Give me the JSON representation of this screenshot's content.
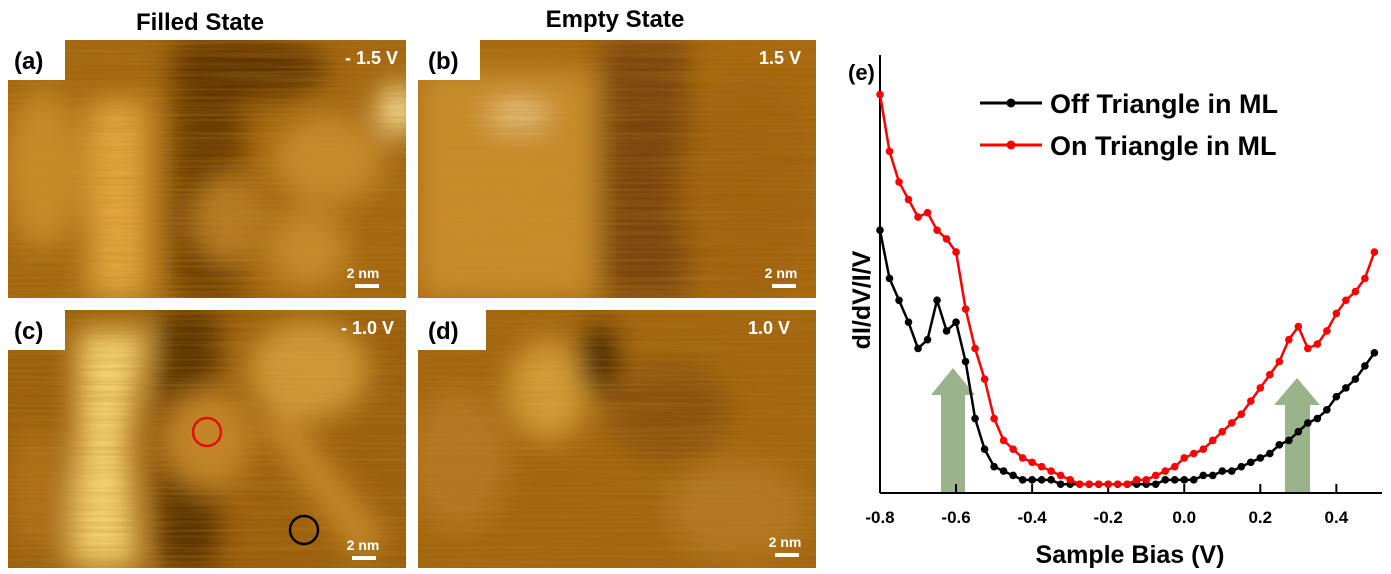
{
  "column_titles": [
    "Filled State",
    "Empty State"
  ],
  "panels": [
    {
      "label": "(a)",
      "bias": "- 1.5 V",
      "scale": "2 nm"
    },
    {
      "label": "(b)",
      "bias": "1.5 V",
      "scale": "2 nm"
    },
    {
      "label": "(c)",
      "bias": "- 1.0 V",
      "scale": "2 nm"
    },
    {
      "label": "(d)",
      "bias": "1.0 V",
      "scale": "2 nm"
    }
  ],
  "chart_data": {
    "type": "line",
    "panel_label": "(e)",
    "x_label": "Sample Bias (V)",
    "y_label": "dI/dV/I/V",
    "x": [
      -0.8,
      -0.775,
      -0.75,
      -0.725,
      -0.7,
      -0.675,
      -0.65,
      -0.625,
      -0.6,
      -0.575,
      -0.55,
      -0.525,
      -0.5,
      -0.475,
      -0.45,
      -0.425,
      -0.4,
      -0.375,
      -0.35,
      -0.325,
      -0.3,
      -0.275,
      -0.25,
      -0.225,
      -0.2,
      -0.175,
      -0.15,
      -0.125,
      -0.1,
      -0.075,
      -0.05,
      -0.025,
      0,
      0.025,
      0.05,
      0.075,
      0.1,
      0.125,
      0.15,
      0.175,
      0.2,
      0.225,
      0.25,
      0.275,
      0.3,
      0.325,
      0.35,
      0.375,
      0.4,
      0.425,
      0.45,
      0.475,
      0.5
    ],
    "series": [
      {
        "name": "Off Triangle in ML",
        "color": "#000000",
        "values": [
          0.6,
          0.49,
          0.44,
          0.39,
          0.33,
          0.35,
          0.44,
          0.37,
          0.39,
          0.3,
          0.17,
          0.1,
          0.06,
          0.05,
          0.04,
          0.03,
          0.03,
          0.03,
          0.03,
          0.02,
          0.02,
          0.02,
          0.02,
          0.02,
          0.02,
          0.02,
          0.02,
          0.02,
          0.02,
          0.02,
          0.03,
          0.03,
          0.03,
          0.03,
          0.04,
          0.04,
          0.05,
          0.05,
          0.06,
          0.07,
          0.08,
          0.09,
          0.11,
          0.12,
          0.14,
          0.16,
          0.17,
          0.19,
          0.22,
          0.24,
          0.26,
          0.29,
          0.32
        ]
      },
      {
        "name": "On Triangle in ML",
        "color": "#ff0000",
        "values": [
          0.91,
          0.78,
          0.71,
          0.67,
          0.63,
          0.64,
          0.6,
          0.58,
          0.55,
          0.42,
          0.33,
          0.26,
          0.17,
          0.12,
          0.1,
          0.08,
          0.07,
          0.06,
          0.05,
          0.04,
          0.03,
          0.02,
          0.02,
          0.02,
          0.02,
          0.02,
          0.02,
          0.03,
          0.03,
          0.04,
          0.05,
          0.06,
          0.08,
          0.09,
          0.1,
          0.12,
          0.14,
          0.16,
          0.18,
          0.21,
          0.24,
          0.27,
          0.3,
          0.35,
          0.38,
          0.33,
          0.34,
          0.37,
          0.41,
          0.44,
          0.46,
          0.49,
          0.55
        ]
      }
    ],
    "xlim": [
      -0.8,
      0.52
    ],
    "ylim": [
      0,
      1
    ],
    "xticks": [
      -0.8,
      -0.6,
      -0.4,
      -0.2,
      {
        "value": 0,
        "label": "0.0"
      },
      0.2,
      0.4
    ],
    "legend": "upper-right",
    "grid": false
  }
}
